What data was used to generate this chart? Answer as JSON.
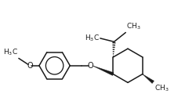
{
  "background_color": "#ffffff",
  "line_color": "#1a1a1a",
  "line_width": 1.1,
  "font_size": 6.5,
  "figsize": [
    2.51,
    1.43
  ],
  "dpi": 100,
  "xlim": [
    0,
    10
  ],
  "ylim": [
    0,
    5.7
  ]
}
